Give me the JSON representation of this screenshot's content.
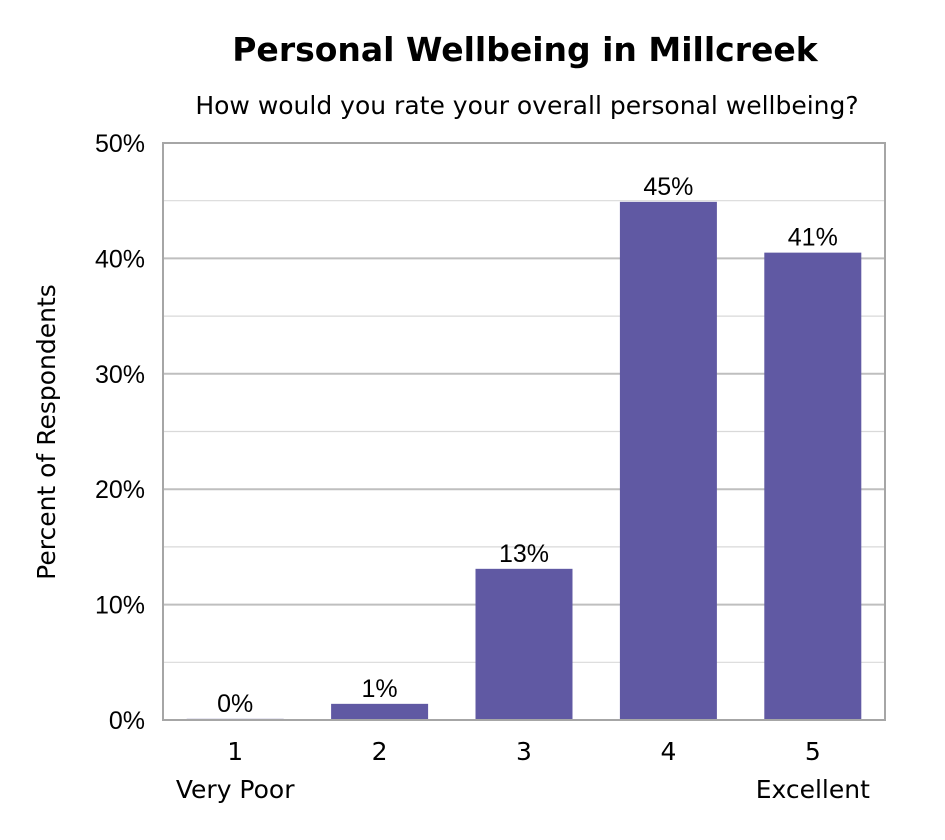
{
  "chart_data": {
    "type": "bar",
    "title": "Personal Wellbeing in Millcreek",
    "subtitle": "How would you rate your overall personal wellbeing?",
    "ylabel": "Percent of Respondents",
    "xlabel": "",
    "categories": [
      "1",
      "2",
      "3",
      "4",
      "5"
    ],
    "category_sublabels": [
      "Very Poor",
      "",
      "",
      "",
      "Excellent"
    ],
    "values": [
      0.1,
      1.4,
      13.1,
      44.9,
      40.5
    ],
    "data_labels": [
      "0%",
      "1%",
      "13%",
      "45%",
      "41%"
    ],
    "ylim": [
      0,
      50
    ],
    "yticks": [
      0,
      10,
      20,
      30,
      40,
      50
    ],
    "ytick_labels": [
      "0%",
      "10%",
      "20%",
      "30%",
      "40%",
      "50%"
    ],
    "grid": true,
    "legend": "none",
    "bar_color": "#6059a3",
    "grid_color": "#bfbfbf"
  }
}
